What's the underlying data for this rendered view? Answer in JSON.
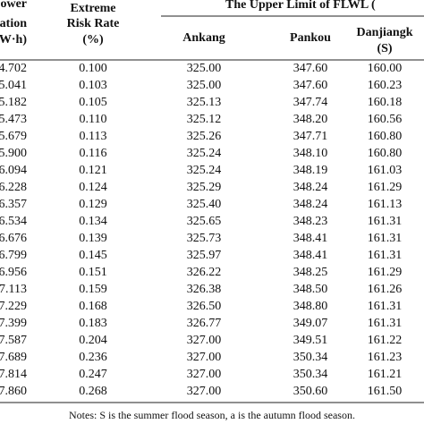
{
  "table": {
    "header": {
      "col1": [
        "ower",
        "eration",
        "kW·h)"
      ],
      "col2": [
        "Extreme",
        "Risk Rate",
        "(%)"
      ],
      "group": "The Upper Limit of FLWL (",
      "sub": [
        [
          "Ankang"
        ],
        [
          "Pankou"
        ],
        [
          "Danjiangk",
          "(S)"
        ]
      ]
    },
    "rows": [
      [
        "4.702",
        "0.100",
        "325.00",
        "347.60",
        "160.00"
      ],
      [
        "5.041",
        "0.103",
        "325.00",
        "347.60",
        "160.23"
      ],
      [
        "5.182",
        "0.105",
        "325.13",
        "347.74",
        "160.18"
      ],
      [
        "5.473",
        "0.110",
        "325.12",
        "348.20",
        "160.56"
      ],
      [
        "5.679",
        "0.113",
        "325.26",
        "347.71",
        "160.80"
      ],
      [
        "5.900",
        "0.116",
        "325.24",
        "348.10",
        "160.80"
      ],
      [
        "6.094",
        "0.121",
        "325.24",
        "348.19",
        "161.03"
      ],
      [
        "6.228",
        "0.124",
        "325.29",
        "348.24",
        "161.29"
      ],
      [
        "6.357",
        "0.129",
        "325.40",
        "348.24",
        "161.13"
      ],
      [
        "6.534",
        "0.134",
        "325.65",
        "348.23",
        "161.31"
      ],
      [
        "6.676",
        "0.139",
        "325.73",
        "348.41",
        "161.31"
      ],
      [
        "6.799",
        "0.145",
        "325.97",
        "348.41",
        "161.31"
      ],
      [
        "6.956",
        "0.151",
        "326.22",
        "348.25",
        "161.29"
      ],
      [
        "7.113",
        "0.159",
        "326.38",
        "348.50",
        "161.26"
      ],
      [
        "7.229",
        "0.168",
        "326.50",
        "348.80",
        "161.31"
      ],
      [
        "7.399",
        "0.183",
        "326.77",
        "349.07",
        "161.31"
      ],
      [
        "7.587",
        "0.204",
        "327.00",
        "349.51",
        "161.22"
      ],
      [
        "7.689",
        "0.236",
        "327.00",
        "350.34",
        "161.23"
      ],
      [
        "7.814",
        "0.247",
        "327.00",
        "350.34",
        "161.21"
      ],
      [
        "7.860",
        "0.268",
        "327.00",
        "350.60",
        "161.50"
      ]
    ],
    "note": "Notes: S is the summer flood season, a is the autumn flood season."
  }
}
